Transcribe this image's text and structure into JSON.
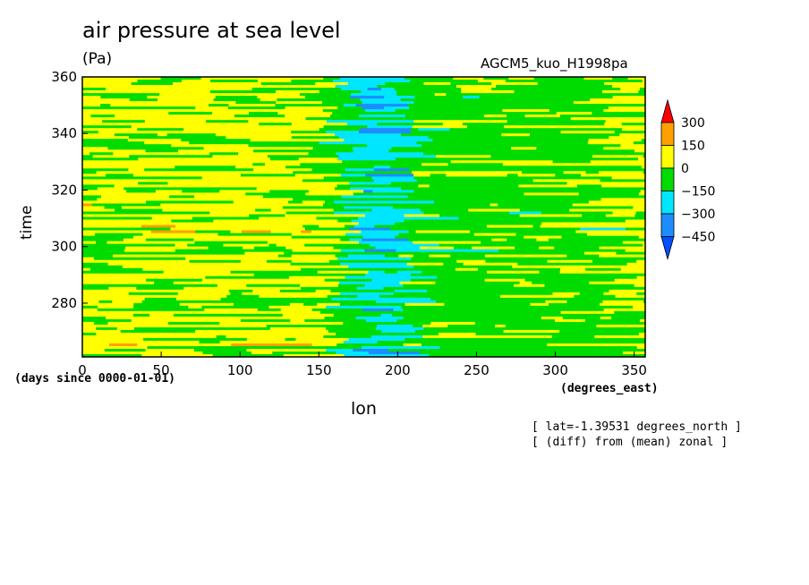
{
  "chart_data": {
    "type": "heatmap",
    "title": "air pressure at sea level",
    "units": "(Pa)",
    "run_name": "AGCM5_kuo_H1998pa",
    "xlabel": "lon",
    "xunits": "(degrees_east)",
    "ylabel": "time",
    "yunits": "(days since 0000-01-01)",
    "xlim": [
      0,
      357
    ],
    "ylim": [
      261,
      360
    ],
    "xticks": [
      "0",
      "50",
      "100",
      "150",
      "200",
      "250",
      "300",
      "350"
    ],
    "yticks": [
      "280",
      "300",
      "320",
      "340",
      "360"
    ],
    "colorbar": {
      "levels": [
        "300",
        "150",
        "0",
        "−150",
        "−300",
        "−450"
      ],
      "colors": [
        "#ff0000",
        "#ffa000",
        "#ffff00",
        "#00dc00",
        "#00e6ff",
        "#1e8cff",
        "#0050ff"
      ]
    },
    "notes": [
      "[ lat=-1.39531 degrees_north ]",
      "[ (diff) from (mean) zonal ]"
    ]
  }
}
